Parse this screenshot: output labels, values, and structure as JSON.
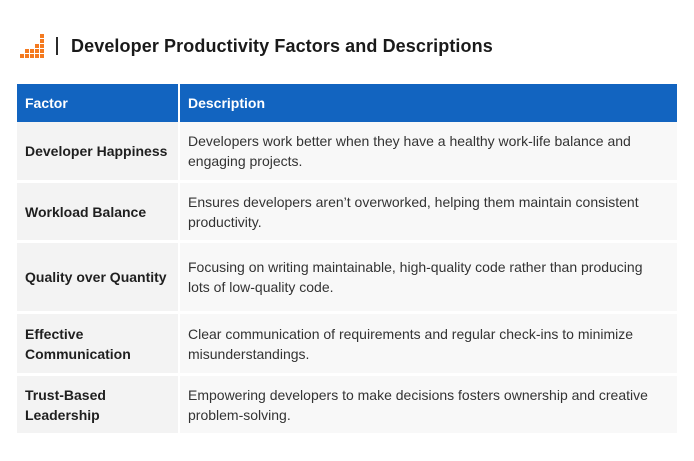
{
  "header": {
    "logo_icon": "bar-chart-logo-icon",
    "title": "Developer Productivity Factors and Descriptions"
  },
  "table": {
    "columns": [
      "Factor",
      "Description"
    ],
    "rows": [
      {
        "factor": "Developer Happiness",
        "description": "Developers work better when they have a healthy work-life balance and engaging projects."
      },
      {
        "factor": "Workload Balance",
        "description": "Ensures developers aren’t overworked, helping them maintain consistent productivity."
      },
      {
        "factor": "Quality over Quantity",
        "description": "Focusing on writing maintainable, high-quality code rather than producing lots of low-quality code."
      },
      {
        "factor": "Effective Communication",
        "description": "Clear communication of requirements and regular check-ins to minimize misunderstandings."
      },
      {
        "factor": "Trust-Based Leadership",
        "description": "Empowering developers to make decisions fosters ownership and creative problem-solving."
      }
    ]
  },
  "colors": {
    "header_bg": "#1264c0",
    "logo_orange": "#f47a20",
    "factor_cell_bg": "#f3f3f3",
    "description_cell_bg": "#f8f8f8"
  }
}
